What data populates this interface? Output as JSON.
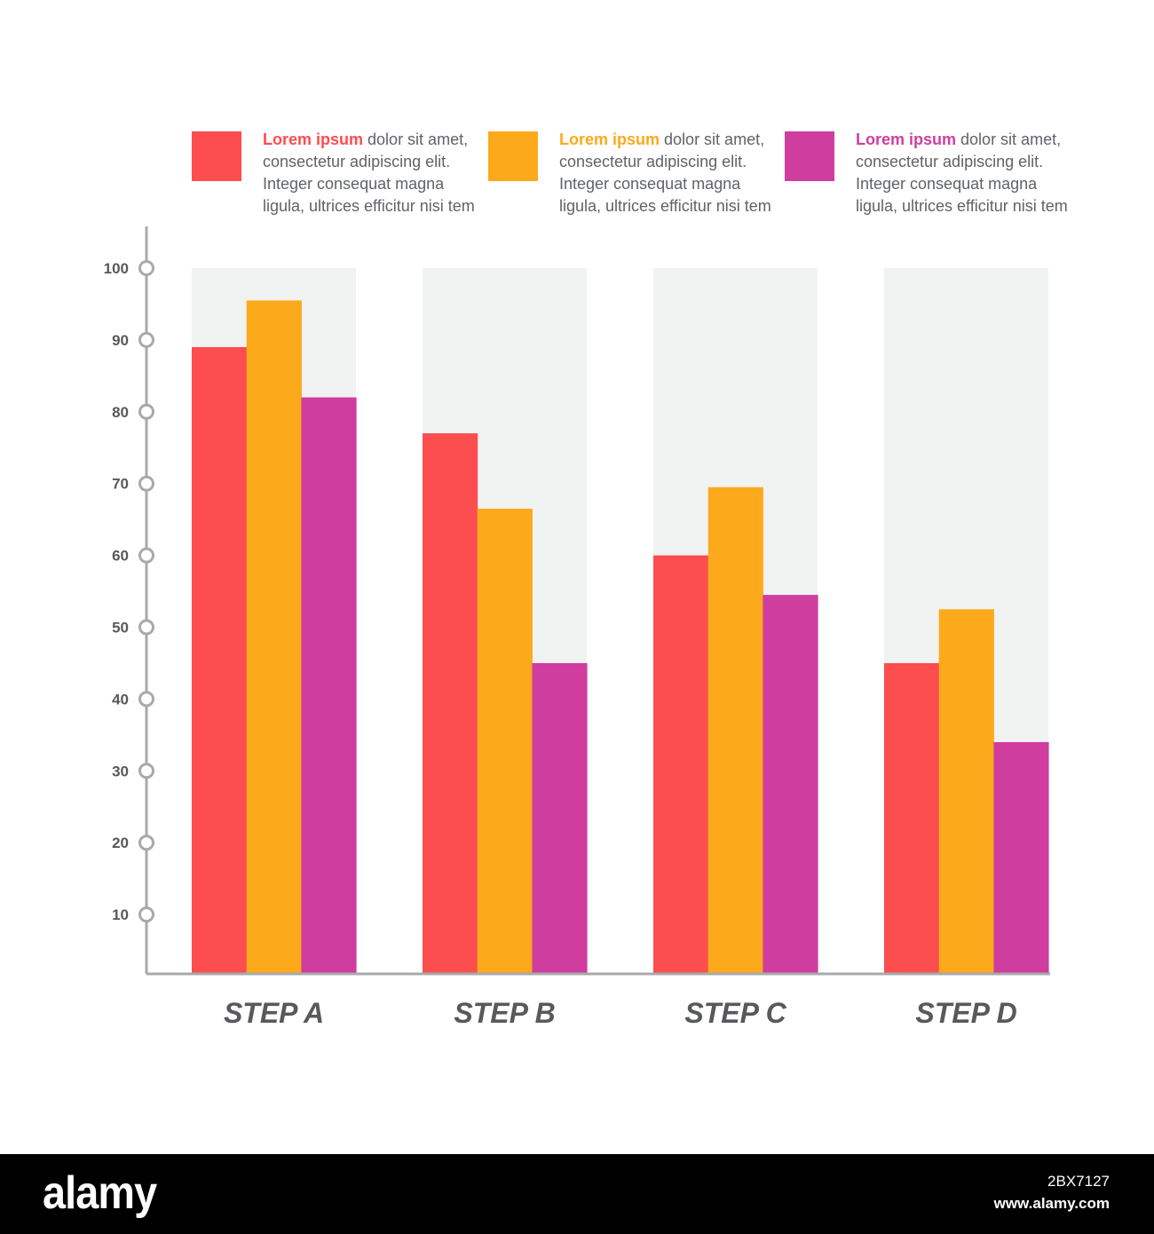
{
  "colors": {
    "series_a": "#fc4d4f",
    "series_b": "#fcaa1c",
    "series_c": "#cf3e9f",
    "panel": "#f1f2f2",
    "axis": "#a7a9ac",
    "label": "#58595b"
  },
  "legend": [
    {
      "lead": "Lorem ipsum",
      "rest": " dolor sit amet, consectetur adipiscing elit. Integer consequat magna ligula, ultrices efficitur nisi tem",
      "color": "#fc4d4f"
    },
    {
      "lead": "Lorem ipsum",
      "rest": " dolor sit amet, consectetur adipiscing elit. Integer consequat magna ligula, ultrices efficitur nisi tem",
      "color": "#fcaa1c"
    },
    {
      "lead": "Lorem ipsum",
      "rest": " dolor sit amet, consectetur adipiscing elit. Integer consequat magna ligula, ultrices efficitur nisi tem",
      "color": "#cf3e9f"
    }
  ],
  "chart_data": {
    "type": "bar",
    "title": "",
    "xlabel": "",
    "ylabel": "",
    "categories": [
      "STEP A",
      "STEP B",
      "STEP C",
      "STEP D"
    ],
    "series": [
      {
        "values": [
          89,
          77,
          60,
          45
        ]
      },
      {
        "values": [
          95.5,
          66.5,
          69.5,
          52.5
        ]
      },
      {
        "values": [
          82,
          45,
          54.5,
          34
        ]
      }
    ],
    "yticks": [
      10,
      20,
      30,
      40,
      50,
      60,
      70,
      80,
      90,
      100
    ],
    "ylim": [
      1.5,
      100
    ],
    "grid": false,
    "legend_position": "top"
  },
  "watermark": {
    "logo": "alamy",
    "image_id": "2BX7127",
    "site": "www.alamy.com"
  }
}
